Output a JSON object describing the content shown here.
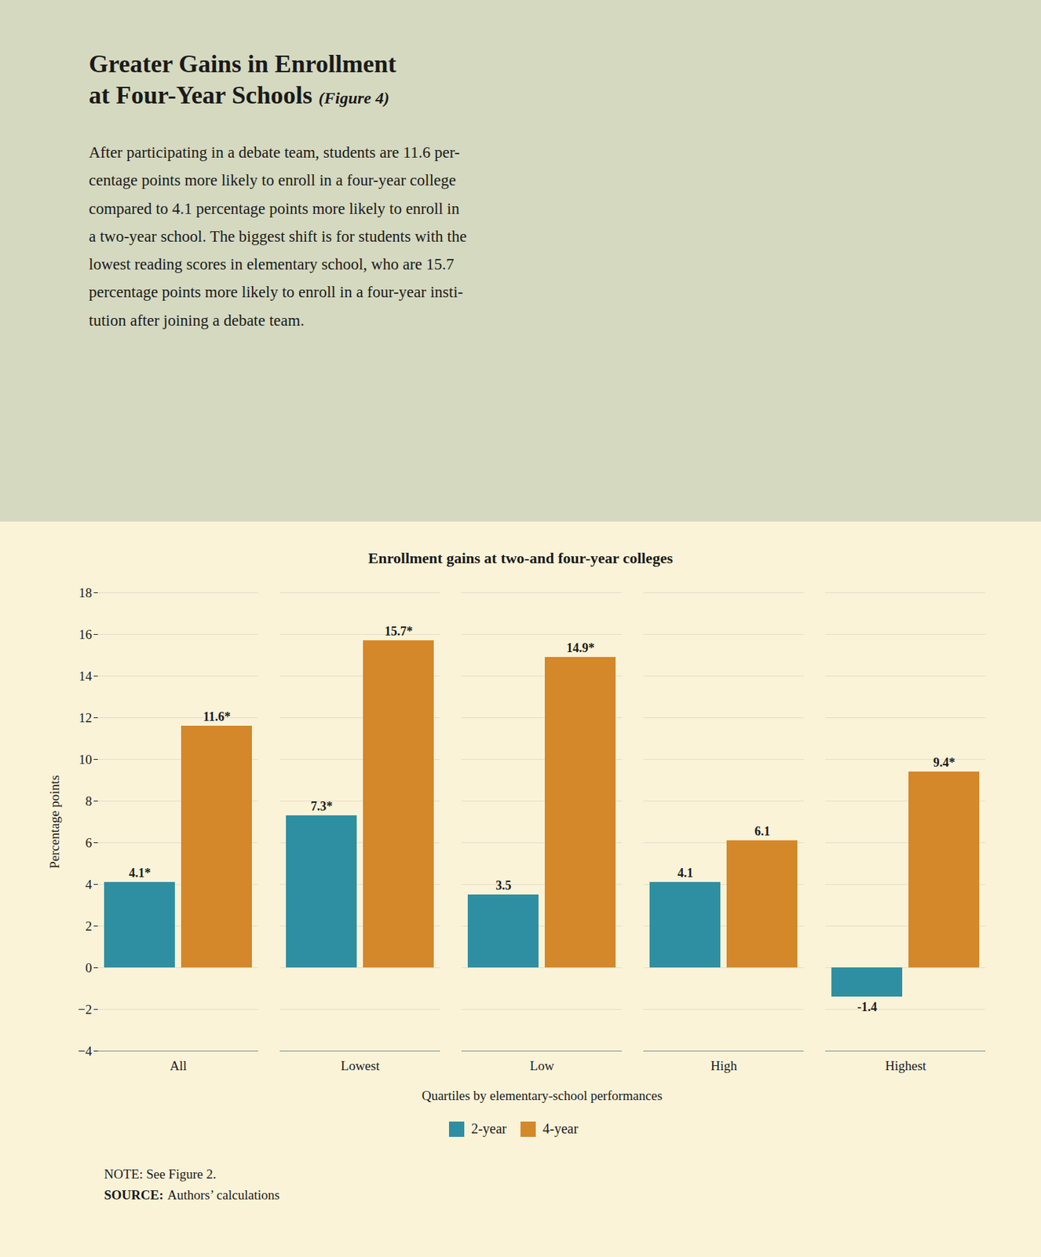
{
  "title": "Greater Gains in Enrollment\nat Four-Year Schools",
  "title_note": "(Figure 4)",
  "description": [
    "After participating in a debate team, students are 11.6 per-",
    "centage points more likely to enroll in a four-year college",
    "compared to 4.1 percentage points more likely to enroll in",
    "a two-year school. The biggest shift is for students with the",
    "lowest reading scores in elementary school, who are 15.7",
    "percentage points more likely to enroll in a four-year insti-",
    "tution after joining a debate team."
  ],
  "note": "NOTE: See Figure 2.",
  "source_label": "SOURCE:",
  "source": "Authors’ calculations",
  "chart_data": {
    "type": "bar",
    "title": "Enrollment gains at two-and four-year colleges",
    "categories": [
      "All",
      "Lowest",
      "Low",
      "High",
      "Highest"
    ],
    "series": [
      {
        "name": "2-year",
        "color": "#2e8fa3",
        "values": [
          4.1,
          7.3,
          3.5,
          4.1,
          -1.4
        ],
        "value_labels": [
          "4.1*",
          "7.3*",
          "3.5",
          "4.1",
          "-1.4"
        ]
      },
      {
        "name": "4-year",
        "color": "#d4882a",
        "values": [
          11.6,
          15.7,
          14.9,
          6.1,
          9.4
        ],
        "value_labels": [
          "11.6*",
          "15.7*",
          "14.9*",
          "6.1",
          "9.4*"
        ]
      }
    ],
    "xlabel": "Quartiles by elementary-school performances",
    "ylabel": "Percentage points",
    "ylim": [
      -4,
      18
    ],
    "yticks": [
      -4,
      -2,
      0,
      2,
      4,
      6,
      8,
      10,
      12,
      14,
      16,
      18
    ],
    "grid": true,
    "data_labels": true,
    "legend": "bottom"
  }
}
